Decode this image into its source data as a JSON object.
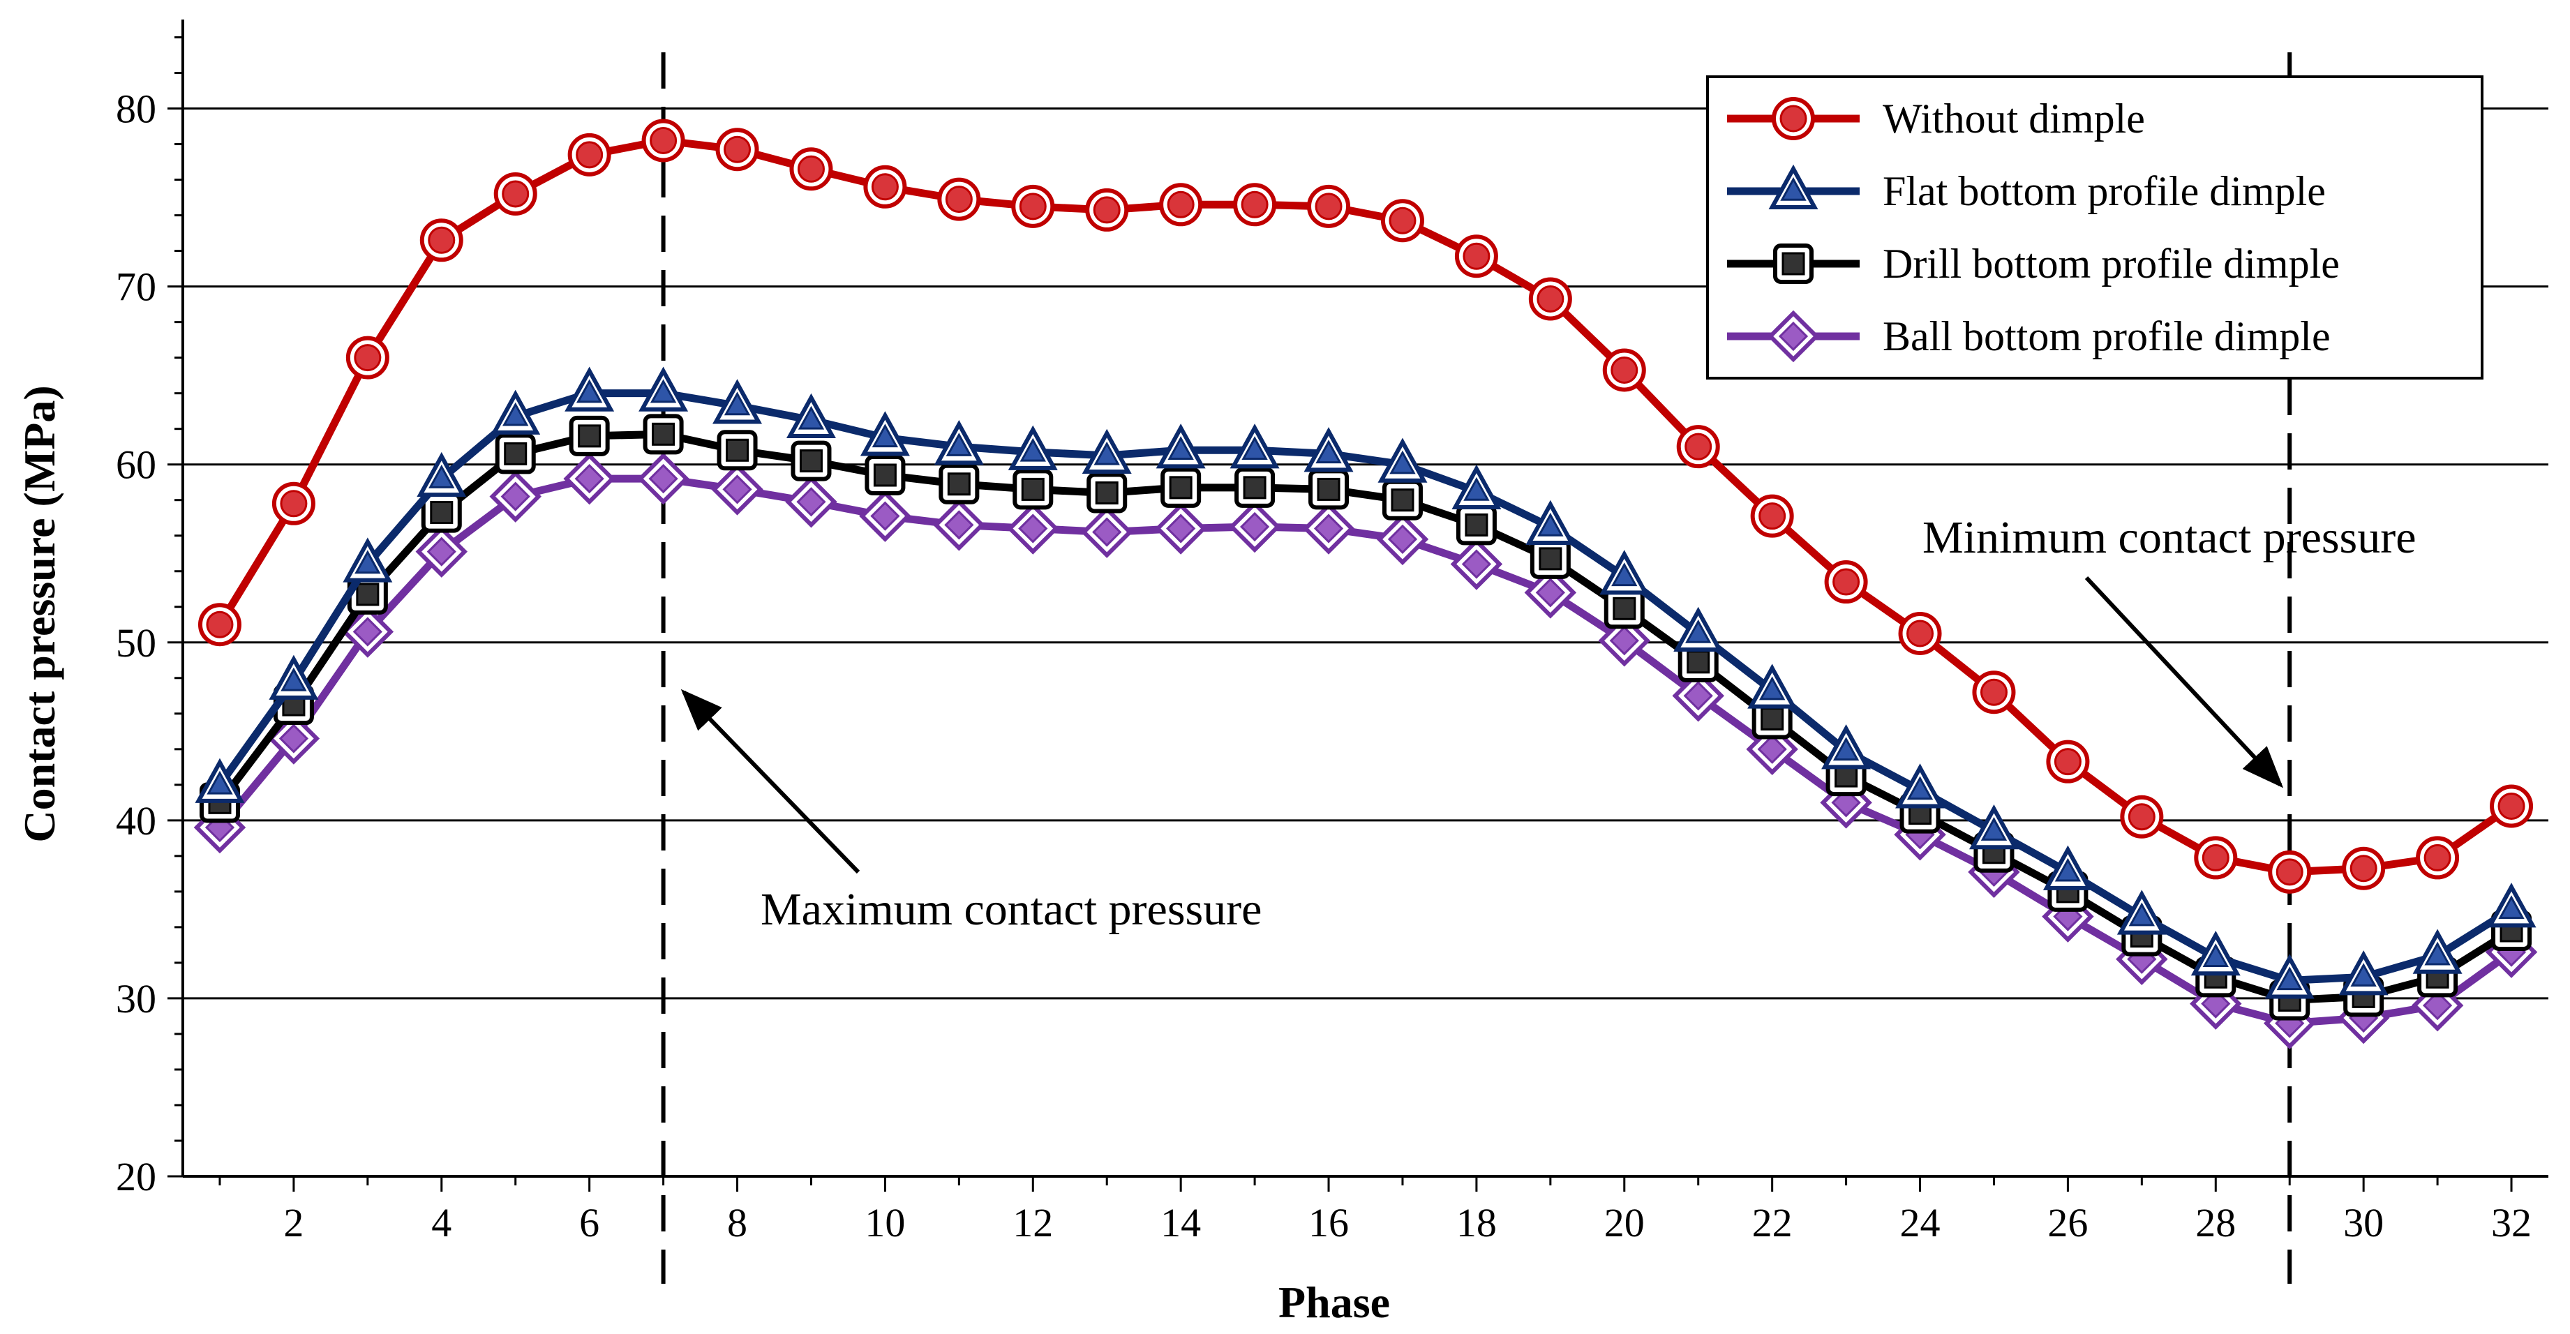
{
  "chart_data": {
    "type": "line",
    "title": "",
    "xlabel": "Phase",
    "ylabel": "Contact pressure (MPa)",
    "xlim": [
      0.5,
      32.5
    ],
    "ylim": [
      20,
      85
    ],
    "xticks": [
      2,
      4,
      6,
      8,
      10,
      12,
      14,
      16,
      18,
      20,
      22,
      24,
      26,
      28,
      30,
      32
    ],
    "yticks": [
      20,
      30,
      40,
      50,
      60,
      70,
      80
    ],
    "grid": "horizontal",
    "legend_position": "top-right",
    "x": [
      1,
      2,
      3,
      4,
      5,
      6,
      7,
      8,
      9,
      10,
      11,
      12,
      13,
      14,
      15,
      16,
      17,
      18,
      19,
      20,
      21,
      22,
      23,
      24,
      25,
      26,
      27,
      28,
      29,
      30,
      31,
      32
    ],
    "series": [
      {
        "name": "Without dimple",
        "marker": "circle",
        "color": "#c00000",
        "fill": "#d9353a",
        "values": [
          51.0,
          57.8,
          66.0,
          72.6,
          75.2,
          77.4,
          78.2,
          77.7,
          76.6,
          75.6,
          74.9,
          74.5,
          74.3,
          74.6,
          74.6,
          74.5,
          73.7,
          71.7,
          69.3,
          65.3,
          61.0,
          57.1,
          53.4,
          50.5,
          47.2,
          43.3,
          40.2,
          37.9,
          37.1,
          37.3,
          37.9,
          40.8
        ]
      },
      {
        "name": "Flat bottom profile dimple",
        "marker": "triangle",
        "color": "#0b2a6b",
        "fill": "#2e55a8",
        "values": [
          42.0,
          47.8,
          54.4,
          59.2,
          62.7,
          64.0,
          64.0,
          63.3,
          62.5,
          61.5,
          61.0,
          60.7,
          60.5,
          60.8,
          60.8,
          60.6,
          60.0,
          58.5,
          56.5,
          53.7,
          50.5,
          47.3,
          43.9,
          41.7,
          39.4,
          37.1,
          34.6,
          32.3,
          31.0,
          31.2,
          32.4,
          35.0
        ]
      },
      {
        "name": "Drill bottom profile dimple",
        "marker": "square",
        "color": "#000000",
        "fill": "#333333",
        "values": [
          41.0,
          46.5,
          52.7,
          57.3,
          60.6,
          61.6,
          61.7,
          60.8,
          60.2,
          59.4,
          58.9,
          58.6,
          58.4,
          58.7,
          58.7,
          58.6,
          58.0,
          56.6,
          54.7,
          51.9,
          48.9,
          45.7,
          42.5,
          40.4,
          38.2,
          36.0,
          33.5,
          31.2,
          29.9,
          30.1,
          31.2,
          33.8
        ]
      },
      {
        "name": "Ball bottom profile dimple",
        "marker": "diamond",
        "color": "#7030a0",
        "fill": "#9b5bc4",
        "values": [
          39.6,
          44.6,
          50.6,
          55.1,
          58.2,
          59.2,
          59.2,
          58.6,
          57.9,
          57.1,
          56.6,
          56.4,
          56.2,
          56.4,
          56.5,
          56.4,
          55.8,
          54.4,
          52.8,
          50.1,
          47.0,
          44.0,
          41.0,
          39.2,
          37.1,
          34.6,
          32.2,
          29.7,
          28.6,
          28.9,
          29.6,
          32.6
        ]
      }
    ],
    "vlines": [
      {
        "x": 7,
        "label": "Maximum contact pressure"
      },
      {
        "x": 29,
        "label": "Minimum contact pressure"
      }
    ]
  }
}
